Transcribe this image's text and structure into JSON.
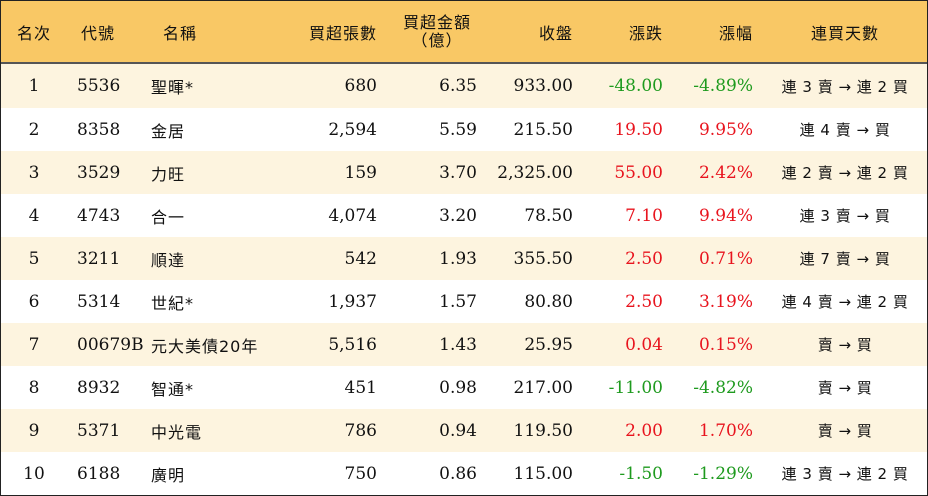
{
  "colors": {
    "header_bg": "#f9c865",
    "odd_row_bg": "#fdf4df",
    "up": "#e8141e",
    "down": "#1e9a1e"
  },
  "headers": {
    "rank": "名次",
    "code": "代號",
    "name": "名稱",
    "buy_lots": "買超張數",
    "buy_amount_line1": "買超金額",
    "buy_amount_line2": "（億）",
    "close": "收盤",
    "change": "漲跌",
    "pct": "漲幅",
    "streak": "連買天數"
  },
  "rows": [
    {
      "rank": "1",
      "code": "5536",
      "name": "聖暉*",
      "buy_lots": "680",
      "buy_amount": "6.35",
      "close": "933.00",
      "change": "-48.00",
      "pct": "-4.89%",
      "dir": "down",
      "streak": "連 3 賣 → 連 2 買"
    },
    {
      "rank": "2",
      "code": "8358",
      "name": "金居",
      "buy_lots": "2,594",
      "buy_amount": "5.59",
      "close": "215.50",
      "change": "19.50",
      "pct": "9.95%",
      "dir": "up",
      "streak": "連 4 賣 → 買"
    },
    {
      "rank": "3",
      "code": "3529",
      "name": "力旺",
      "buy_lots": "159",
      "buy_amount": "3.70",
      "close": "2,325.00",
      "change": "55.00",
      "pct": "2.42%",
      "dir": "up",
      "streak": "連 2 賣 → 連 2 買"
    },
    {
      "rank": "4",
      "code": "4743",
      "name": "合一",
      "buy_lots": "4,074",
      "buy_amount": "3.20",
      "close": "78.50",
      "change": "7.10",
      "pct": "9.94%",
      "dir": "up",
      "streak": "連 3 賣 → 買"
    },
    {
      "rank": "5",
      "code": "3211",
      "name": "順達",
      "buy_lots": "542",
      "buy_amount": "1.93",
      "close": "355.50",
      "change": "2.50",
      "pct": "0.71%",
      "dir": "up",
      "streak": "連 7 賣 → 買"
    },
    {
      "rank": "6",
      "code": "5314",
      "name": "世紀*",
      "buy_lots": "1,937",
      "buy_amount": "1.57",
      "close": "80.80",
      "change": "2.50",
      "pct": "3.19%",
      "dir": "up",
      "streak": "連 4 賣 → 連 2 買"
    },
    {
      "rank": "7",
      "code": "00679B",
      "name": "元大美債20年",
      "buy_lots": "5,516",
      "buy_amount": "1.43",
      "close": "25.95",
      "change": "0.04",
      "pct": "0.15%",
      "dir": "up",
      "streak": "賣 → 買"
    },
    {
      "rank": "8",
      "code": "8932",
      "name": "智通*",
      "buy_lots": "451",
      "buy_amount": "0.98",
      "close": "217.00",
      "change": "-11.00",
      "pct": "-4.82%",
      "dir": "down",
      "streak": "賣 → 買"
    },
    {
      "rank": "9",
      "code": "5371",
      "name": "中光電",
      "buy_lots": "786",
      "buy_amount": "0.94",
      "close": "119.50",
      "change": "2.00",
      "pct": "1.70%",
      "dir": "up",
      "streak": "賣 → 買"
    },
    {
      "rank": "10",
      "code": "6188",
      "name": "廣明",
      "buy_lots": "750",
      "buy_amount": "0.86",
      "close": "115.00",
      "change": "-1.50",
      "pct": "-1.29%",
      "dir": "down",
      "streak": "連 3 賣 → 連 2 買"
    }
  ]
}
